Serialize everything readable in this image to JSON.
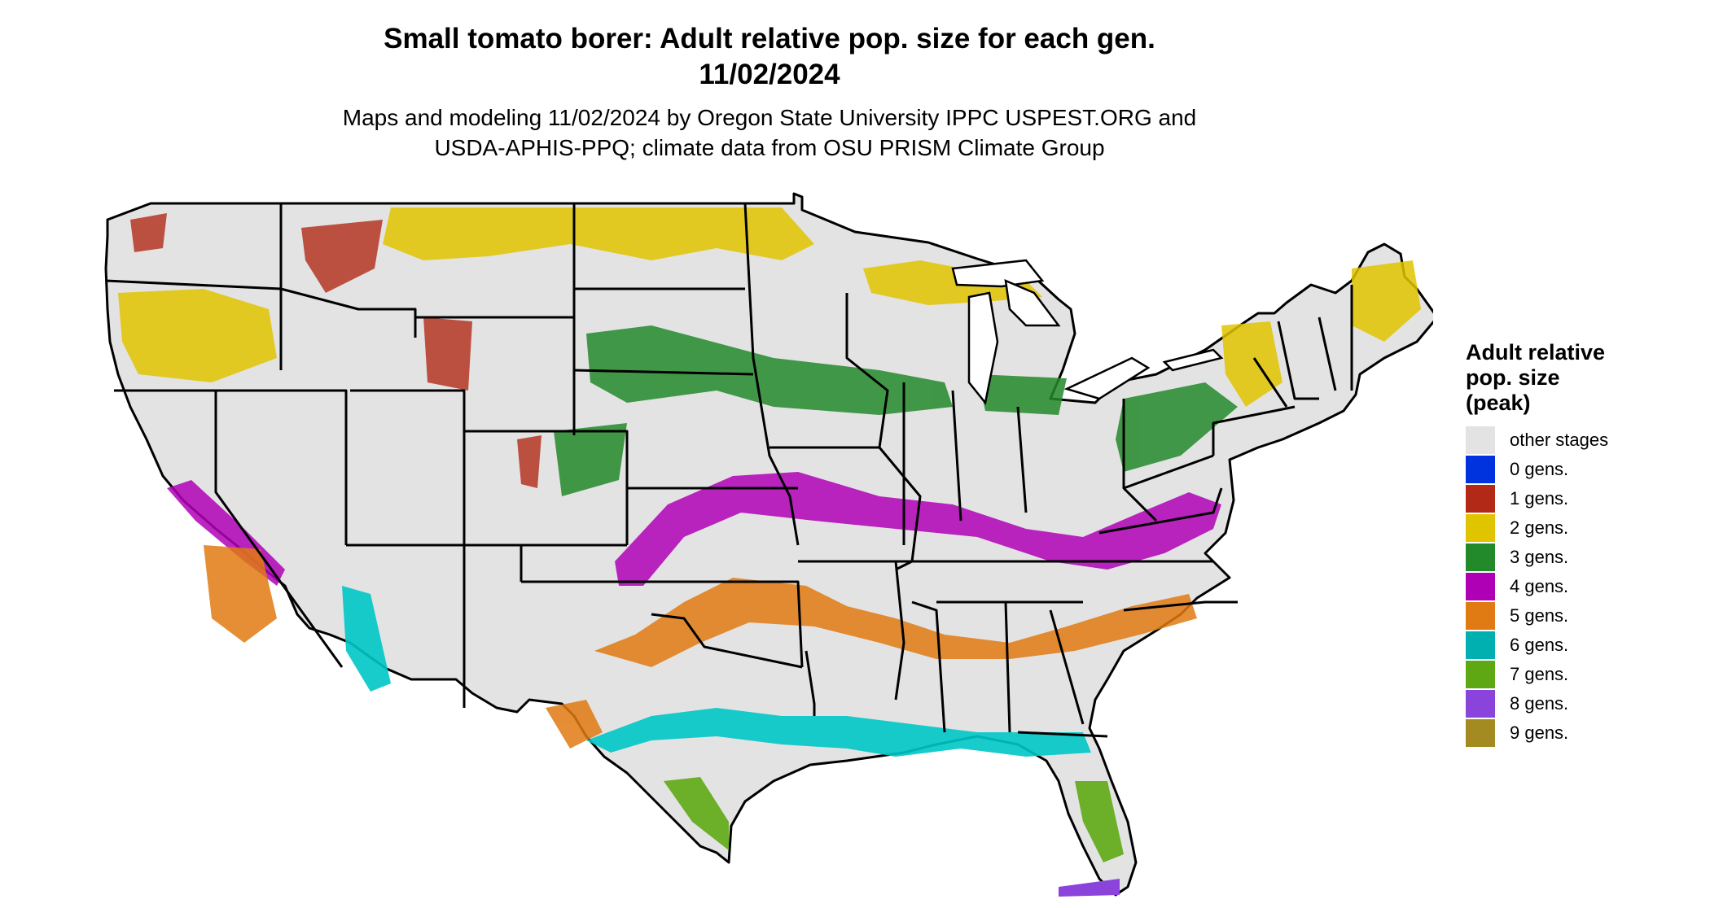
{
  "header": {
    "title_line1": "Small tomato borer: Adult relative pop. size for each gen.",
    "title_line2": "11/02/2024",
    "subtitle_line1": "Maps and modeling 11/02/2024 by Oregon State University IPPC USPEST.ORG and",
    "subtitle_line2": "USDA-APHIS-PPQ; climate data from OSU PRISM Climate Group"
  },
  "legend": {
    "title_line1": "Adult relative",
    "title_line2": "pop. size",
    "title_line3": "(peak)",
    "items": [
      {
        "label": "other stages",
        "color": "#e3e3e3"
      },
      {
        "label": "0 gens.",
        "color": "#0033dd"
      },
      {
        "label": "1 gens.",
        "color": "#b22a17"
      },
      {
        "label": "2 gens.",
        "color": "#e0c400"
      },
      {
        "label": "3 gens.",
        "color": "#238a2b"
      },
      {
        "label": "4 gens.",
        "color": "#b000b6"
      },
      {
        "label": "5 gens.",
        "color": "#e07a12"
      },
      {
        "label": "6 gens.",
        "color": "#00b0b0"
      },
      {
        "label": "7 gens.",
        "color": "#5ea814"
      },
      {
        "label": "8 gens.",
        "color": "#8a44dc"
      },
      {
        "label": "9 gens.",
        "color": "#a38b22"
      }
    ]
  }
}
